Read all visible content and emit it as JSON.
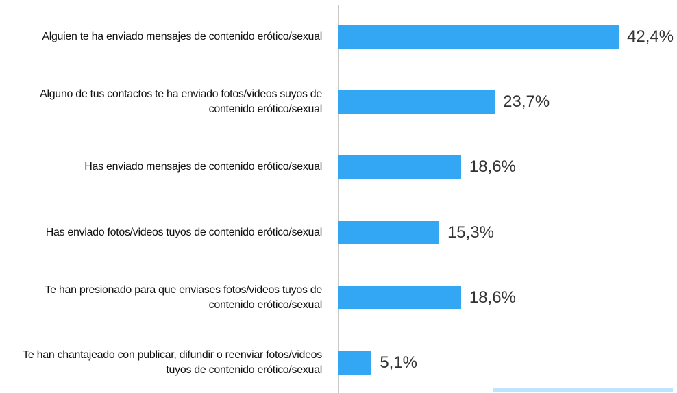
{
  "chart_data": {
    "type": "bar",
    "orientation": "horizontal",
    "categories": [
      "Alguien te ha enviado mensajes de contenido erótico/sexual",
      "Alguno de tus contactos te ha enviado fotos/videos suyos de contenido erótico/sexual",
      "Has enviado mensajes de contenido erótico/sexual",
      "Has enviado fotos/videos tuyos de contenido erótico/sexual",
      "Te han presionado para que enviases fotos/videos tuyos de contenido erótico/sexual",
      "Te han chantajeado con publicar, difundir o reenviar fotos/videos tuyos de contenido erótico/sexual"
    ],
    "values": [
      42.4,
      23.7,
      18.6,
      15.3,
      18.6,
      5.1
    ],
    "value_labels": [
      "42,4%",
      "23,7%",
      "18,6%",
      "15,3%",
      "18,6%",
      "5,1%"
    ],
    "color": "#33a6f4"
  }
}
